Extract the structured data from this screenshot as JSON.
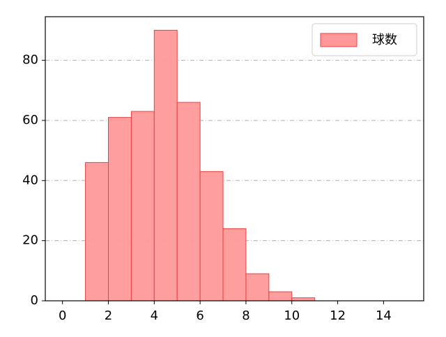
{
  "chart_data": {
    "type": "histogram",
    "bins": [
      1,
      2,
      3,
      4,
      5,
      6,
      7,
      8,
      9,
      10,
      11
    ],
    "series": [
      {
        "name": "球数",
        "color": "#ff9999",
        "edgecolor": "#e84040",
        "values": [
          46,
          61,
          63,
          90,
          66,
          43,
          24,
          9,
          3,
          1
        ]
      }
    ],
    "xlim": [
      -0.75,
      15.75
    ],
    "ylim": [
      0,
      94.5
    ],
    "xticks": [
      0,
      2,
      4,
      6,
      8,
      10,
      12,
      14
    ],
    "yticks": [
      0,
      20,
      40,
      60,
      80
    ],
    "grid": true,
    "legend": "upper right"
  }
}
